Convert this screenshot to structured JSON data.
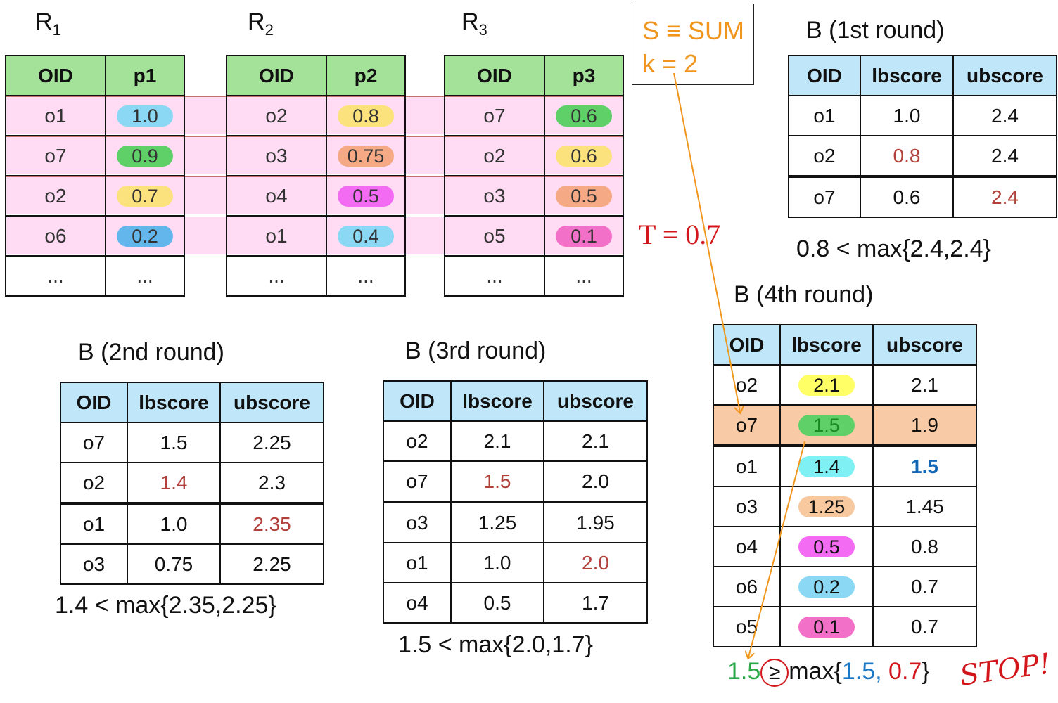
{
  "r_tables": [
    {
      "name": "R",
      "sub": "1",
      "col_oid": "OID",
      "col_p": "p1",
      "rows": [
        {
          "oid": "o1",
          "p": "1.0",
          "color": "#8ad8f3"
        },
        {
          "oid": "o7",
          "p": "0.9",
          "color": "#5fd068"
        },
        {
          "oid": "o2",
          "p": "0.7",
          "color": "#fbe27d"
        },
        {
          "oid": "o6",
          "p": "0.2",
          "color": "#62b6ec"
        },
        {
          "oid": "...",
          "p": "..."
        }
      ]
    },
    {
      "name": "R",
      "sub": "2",
      "col_oid": "OID",
      "col_p": "p2",
      "rows": [
        {
          "oid": "o2",
          "p": "0.8",
          "color": "#fbe27d"
        },
        {
          "oid": "o3",
          "p": "0.75",
          "color": "#f6a985"
        },
        {
          "oid": "o4",
          "p": "0.5",
          "color": "#f26bf2"
        },
        {
          "oid": "o1",
          "p": "0.4",
          "color": "#8ad8f3"
        },
        {
          "oid": "...",
          "p": "..."
        }
      ]
    },
    {
      "name": "R",
      "sub": "3",
      "col_oid": "OID",
      "col_p": "p3",
      "rows": [
        {
          "oid": "o7",
          "p": "0.6",
          "color": "#5fd068"
        },
        {
          "oid": "o2",
          "p": "0.6",
          "color": "#fbe27d"
        },
        {
          "oid": "o3",
          "p": "0.5",
          "color": "#f6a985"
        },
        {
          "oid": "o5",
          "p": "0.1",
          "color": "#f370c9"
        },
        {
          "oid": "...",
          "p": "..."
        }
      ]
    }
  ],
  "params": {
    "line1": "S ≡ SUM",
    "line2": "k = 2"
  },
  "threshold": "T = 0.7",
  "b_headers": {
    "oid": "OID",
    "lb": "lbscore",
    "ub": "ubscore"
  },
  "b_rounds": {
    "r1": {
      "title": "B (1st round)",
      "condition": "0.8 < max{2.4,2.4}",
      "rows": [
        {
          "oid": "o1",
          "lb": "1.0",
          "ub": "2.4"
        },
        {
          "oid": "o2",
          "lb": "0.8",
          "ub": "2.4"
        },
        {
          "oid": "o7",
          "lb": "0.6",
          "ub": "2.4"
        }
      ]
    },
    "r2": {
      "title": "B (2nd round)",
      "condition": "1.4 < max{2.35,2.25}",
      "rows": [
        {
          "oid": "o7",
          "lb": "1.5",
          "ub": "2.25"
        },
        {
          "oid": "o2",
          "lb": "1.4",
          "ub": "2.3"
        },
        {
          "oid": "o1",
          "lb": "1.0",
          "ub": "2.35"
        },
        {
          "oid": "o3",
          "lb": "0.75",
          "ub": "2.25"
        }
      ]
    },
    "r3": {
      "title": "B (3rd round)",
      "condition": "1.5 < max{2.0,1.7}",
      "rows": [
        {
          "oid": "o2",
          "lb": "2.1",
          "ub": "2.1"
        },
        {
          "oid": "o7",
          "lb": "1.5",
          "ub": "2.0"
        },
        {
          "oid": "o3",
          "lb": "1.25",
          "ub": "1.95"
        },
        {
          "oid": "o1",
          "lb": "1.0",
          "ub": "2.0"
        },
        {
          "oid": "o4",
          "lb": "0.5",
          "ub": "1.7"
        }
      ]
    },
    "r4": {
      "title": "B (4th round)",
      "rows": [
        {
          "oid": "o2",
          "lb": "2.1",
          "ub": "2.1",
          "color": "#ffff66"
        },
        {
          "oid": "o7",
          "lb": "1.5",
          "ub": "1.9",
          "color": "#5fd068"
        },
        {
          "oid": "o1",
          "lb": "1.4",
          "ub": "1.5",
          "color": "#7ff0f4"
        },
        {
          "oid": "o3",
          "lb": "1.25",
          "ub": "1.45",
          "color": "#f8c99f"
        },
        {
          "oid": "o4",
          "lb": "0.5",
          "ub": "0.8",
          "color": "#f26bf2"
        },
        {
          "oid": "o6",
          "lb": "0.2",
          "ub": "0.7",
          "color": "#8ad8f3"
        },
        {
          "oid": "o5",
          "lb": "0.1",
          "ub": "0.7",
          "color": "#f370c9"
        }
      ]
    }
  },
  "final": {
    "lhs": "1.5",
    "op": "≥",
    "mid": "max{",
    "v1": "1.5",
    "comma": ", ",
    "v2": "0.7",
    "close": "}",
    "stop": "STOP!"
  },
  "colors": {
    "green": "#29a847",
    "blue": "#1b78c6",
    "red": "#d2161c",
    "orange": "#f0961e",
    "pink": "#ffd8f4",
    "peach": "#f8cba6"
  }
}
